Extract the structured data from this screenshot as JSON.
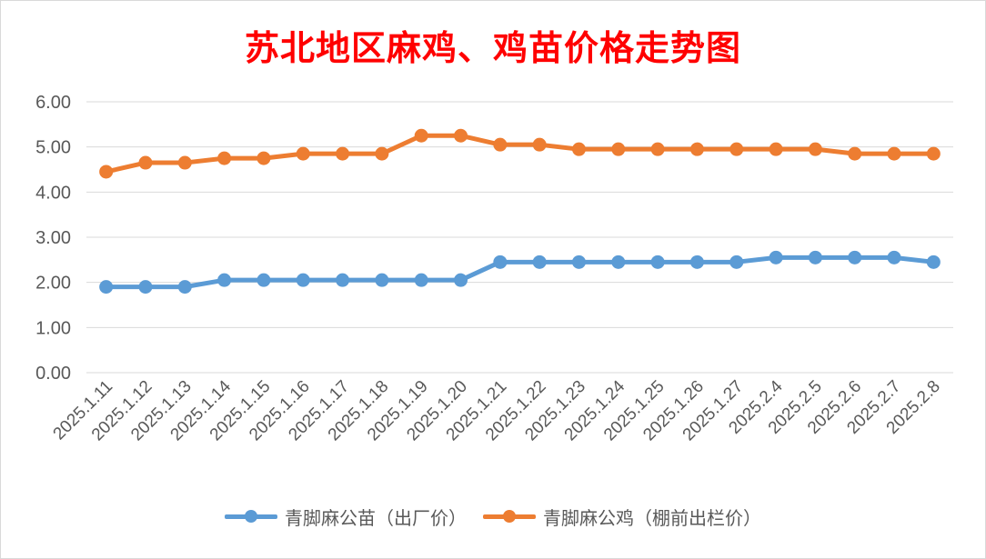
{
  "chart_data": {
    "type": "line",
    "title": "苏北地区麻鸡、鸡苗价格走势图",
    "xlabel": "",
    "ylabel": "",
    "ylim": [
      0,
      6
    ],
    "yticks": [
      "0.00",
      "1.00",
      "2.00",
      "3.00",
      "4.00",
      "5.00",
      "6.00"
    ],
    "grid": true,
    "legend_position": "bottom",
    "categories": [
      "2025.1.11",
      "2025.1.12",
      "2025.1.13",
      "2025.1.14",
      "2025.1.15",
      "2025.1.16",
      "2025.1.17",
      "2025.1.18",
      "2025.1.19",
      "2025.1.20",
      "2025.1.21",
      "2025.1.22",
      "2025.1.23",
      "2025.1.24",
      "2025.1.25",
      "2025.1.26",
      "2025.1.27",
      "2025.2.4",
      "2025.2.5",
      "2025.2.6",
      "2025.2.7",
      "2025.2.8"
    ],
    "series": [
      {
        "name": "青脚麻公苗（出厂价）",
        "color": "#5b9bd5",
        "values": [
          1.9,
          1.9,
          1.9,
          2.05,
          2.05,
          2.05,
          2.05,
          2.05,
          2.05,
          2.05,
          2.45,
          2.45,
          2.45,
          2.45,
          2.45,
          2.45,
          2.45,
          2.55,
          2.55,
          2.55,
          2.55,
          2.45
        ]
      },
      {
        "name": "青脚麻公鸡（棚前出栏价）",
        "color": "#ed7d31",
        "values": [
          4.45,
          4.65,
          4.65,
          4.75,
          4.75,
          4.85,
          4.85,
          4.85,
          5.25,
          5.25,
          5.05,
          5.05,
          4.95,
          4.95,
          4.95,
          4.95,
          4.95,
          4.95,
          4.95,
          4.85,
          4.85,
          4.85
        ]
      }
    ]
  }
}
